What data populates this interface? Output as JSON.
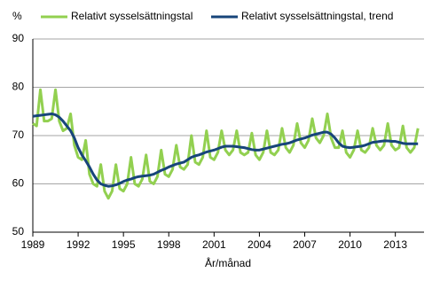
{
  "chart_data": {
    "type": "line",
    "y_unit_label": "%",
    "x_label": "År/månad",
    "xlim": [
      1989,
      2014.9
    ],
    "ylim": [
      50,
      90
    ],
    "xticks": [
      1989,
      1992,
      1995,
      1998,
      2001,
      2004,
      2007,
      2010,
      2013
    ],
    "yticks": [
      50,
      60,
      70,
      80,
      90
    ],
    "grid": true,
    "legend": "top",
    "x": [
      1989,
      1989.25,
      1989.5,
      1989.75,
      1990,
      1990.25,
      1990.5,
      1990.75,
      1991,
      1991.25,
      1991.5,
      1991.75,
      1992,
      1992.25,
      1992.5,
      1992.75,
      1993,
      1993.25,
      1993.5,
      1993.75,
      1994,
      1994.25,
      1994.5,
      1994.75,
      1995,
      1995.25,
      1995.5,
      1995.75,
      1996,
      1996.25,
      1996.5,
      1996.75,
      1997,
      1997.25,
      1997.5,
      1997.75,
      1998,
      1998.25,
      1998.5,
      1998.75,
      1999,
      1999.25,
      1999.5,
      1999.75,
      2000,
      2000.25,
      2000.5,
      2000.75,
      2001,
      2001.25,
      2001.5,
      2001.75,
      2002,
      2002.25,
      2002.5,
      2002.75,
      2003,
      2003.25,
      2003.5,
      2003.75,
      2004,
      2004.25,
      2004.5,
      2004.75,
      2005,
      2005.25,
      2005.5,
      2005.75,
      2006,
      2006.25,
      2006.5,
      2006.75,
      2007,
      2007.25,
      2007.5,
      2007.75,
      2008,
      2008.25,
      2008.5,
      2008.75,
      2009,
      2009.25,
      2009.5,
      2009.75,
      2010,
      2010.25,
      2010.5,
      2010.75,
      2011,
      2011.25,
      2011.5,
      2011.75,
      2012,
      2012.25,
      2012.5,
      2012.75,
      2013,
      2013.25,
      2013.5,
      2013.75,
      2014,
      2014.25,
      2014.5
    ],
    "series": [
      {
        "name": "Relativt sysselsättningstal",
        "color": "#92d050",
        "width": 3,
        "values": [
          72.5,
          72.0,
          79.5,
          73.0,
          73.0,
          73.5,
          79.5,
          73.0,
          71.0,
          71.5,
          74.5,
          68.0,
          65.5,
          65.0,
          69.0,
          62.0,
          60.0,
          59.5,
          64.0,
          58.5,
          57.0,
          58.5,
          64.0,
          59.0,
          58.5,
          60.0,
          65.5,
          60.0,
          59.5,
          61.0,
          66.0,
          60.5,
          60.0,
          61.5,
          67.0,
          62.0,
          61.5,
          63.0,
          68.0,
          63.5,
          63.0,
          64.0,
          70.0,
          64.5,
          64.0,
          65.5,
          71.0,
          65.5,
          65.0,
          66.5,
          71.0,
          67.0,
          66.0,
          67.0,
          71.0,
          66.5,
          66.0,
          66.5,
          70.5,
          66.0,
          65.0,
          66.5,
          71.0,
          66.5,
          66.0,
          67.0,
          71.5,
          67.5,
          66.5,
          68.0,
          72.5,
          68.5,
          67.5,
          69.0,
          73.5,
          69.5,
          68.5,
          70.0,
          74.5,
          69.5,
          67.5,
          67.5,
          71.0,
          66.5,
          65.5,
          67.0,
          71.0,
          67.0,
          66.5,
          67.5,
          71.5,
          68.0,
          67.0,
          68.0,
          72.5,
          68.0,
          67.0,
          67.5,
          72.0,
          67.5,
          66.5,
          67.5,
          71.5
        ]
      },
      {
        "name": "Relativt sysselsättningstal, trend",
        "color": "#17457a",
        "width": 3,
        "values": [
          74.0,
          74.1,
          74.2,
          74.3,
          74.4,
          74.5,
          74.3,
          73.8,
          73.0,
          72.0,
          71.0,
          69.5,
          67.5,
          66.0,
          64.8,
          63.5,
          62.0,
          60.8,
          60.0,
          59.7,
          59.5,
          59.6,
          59.8,
          60.1,
          60.5,
          60.8,
          61.0,
          61.3,
          61.5,
          61.6,
          61.7,
          61.8,
          62.0,
          62.4,
          62.8,
          63.1,
          63.5,
          63.8,
          64.1,
          64.3,
          64.5,
          65.0,
          65.5,
          65.8,
          66.0,
          66.3,
          66.6,
          66.8,
          67.0,
          67.3,
          67.6,
          67.8,
          67.8,
          67.8,
          67.7,
          67.6,
          67.5,
          67.3,
          67.1,
          67.0,
          67.0,
          67.2,
          67.4,
          67.6,
          67.8,
          68.0,
          68.2,
          68.3,
          68.5,
          68.8,
          69.1,
          69.3,
          69.5,
          69.8,
          70.1,
          70.3,
          70.5,
          70.7,
          70.7,
          70.3,
          69.5,
          68.5,
          67.8,
          67.6,
          67.5,
          67.6,
          67.7,
          67.8,
          68.0,
          68.3,
          68.6,
          68.7,
          68.8,
          68.9,
          68.9,
          68.8,
          68.8,
          68.6,
          68.4,
          68.3,
          68.3,
          68.3,
          68.3
        ]
      }
    ]
  }
}
